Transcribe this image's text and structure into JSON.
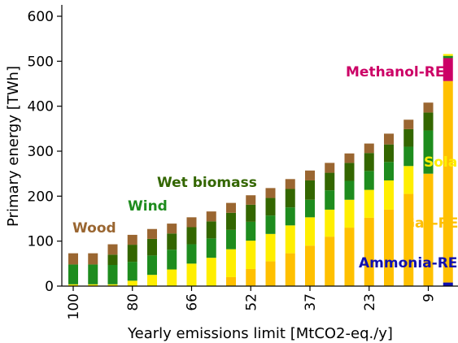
{
  "chart_data": {
    "type": "bar",
    "stacked": true,
    "xlabel": "Yearly emissions limit [MtCO2-eq./y]",
    "ylabel": "Primary energy [TWh]",
    "ylim": [
      0,
      620
    ],
    "yticks": [
      0,
      100,
      200,
      300,
      400,
      500,
      600
    ],
    "grid": false,
    "categories": [
      "100",
      "",
      "",
      "80",
      "",
      "",
      "66",
      "",
      "",
      "52",
      "",
      "",
      "37",
      "",
      "",
      "23",
      "",
      "",
      "9",
      ""
    ],
    "series": [
      {
        "name": "Ammonia-RE",
        "color": "#1010b0",
        "values": [
          0,
          0,
          0,
          0,
          0,
          0,
          0,
          0,
          0,
          0,
          0,
          0,
          0,
          0,
          0,
          0,
          0,
          0,
          0,
          8
        ]
      },
      {
        "name": "Gas-RE",
        "color": "#ffc000",
        "values": [
          0,
          0,
          0,
          0,
          0,
          0,
          0,
          0,
          20,
          38,
          55,
          73,
          90,
          110,
          130,
          152,
          170,
          205,
          250,
          448
        ]
      },
      {
        "name": "Sola",
        "color": "#ffee00",
        "values": [
          4,
          4,
          4,
          12,
          25,
          37,
          50,
          63,
          62,
          63,
          61,
          62,
          63,
          60,
          62,
          62,
          65,
          62,
          0,
          0
        ]
      },
      {
        "name": "Wind",
        "color": "#1e8c1e",
        "values": [
          44,
          44,
          43,
          42,
          43,
          44,
          43,
          43,
          43,
          42,
          41,
          40,
          39,
          43,
          42,
          42,
          41,
          43,
          96,
          0
        ]
      },
      {
        "name": "Wet biomass",
        "color": "#336600",
        "values": [
          0,
          0,
          23,
          38,
          37,
          36,
          38,
          38,
          38,
          38,
          39,
          41,
          43,
          39,
          40,
          40,
          39,
          39,
          40,
          0
        ]
      },
      {
        "name": "Wood",
        "color": "#9a6631",
        "values": [
          25,
          25,
          23,
          22,
          22,
          22,
          22,
          22,
          22,
          21,
          22,
          22,
          22,
          22,
          21,
          21,
          24,
          21,
          22,
          0
        ]
      },
      {
        "name": "Methanol-RE",
        "color": "#cc0066",
        "values": [
          0,
          0,
          0,
          0,
          0,
          0,
          0,
          0,
          0,
          0,
          0,
          0,
          0,
          0,
          0,
          0,
          0,
          0,
          0,
          51
        ]
      },
      {
        "name": "",
        "color": "#1e8c1e",
        "values": [
          0,
          0,
          0,
          0,
          0,
          0,
          0,
          0,
          0,
          0,
          0,
          0,
          0,
          0,
          0,
          0,
          0,
          0,
          0,
          5
        ]
      },
      {
        "name": "",
        "color": "#ffee00",
        "values": [
          0,
          0,
          0,
          0,
          0,
          0,
          0,
          0,
          0,
          0,
          0,
          0,
          0,
          0,
          0,
          0,
          0,
          0,
          0,
          4
        ]
      }
    ],
    "annotations": [
      {
        "text": "Methanol-RE",
        "color": "#cc0066"
      },
      {
        "text": "Sola",
        "color": "#ffee00"
      },
      {
        "text": "Gas-RE",
        "color": "#ffc000"
      },
      {
        "text": "Ammonia-RE",
        "color": "#1010b0"
      },
      {
        "text": "Wet biomass",
        "color": "#336600"
      },
      {
        "text": "Wind",
        "color": "#1e8c1e"
      },
      {
        "text": "Wood",
        "color": "#9a6631"
      }
    ]
  }
}
